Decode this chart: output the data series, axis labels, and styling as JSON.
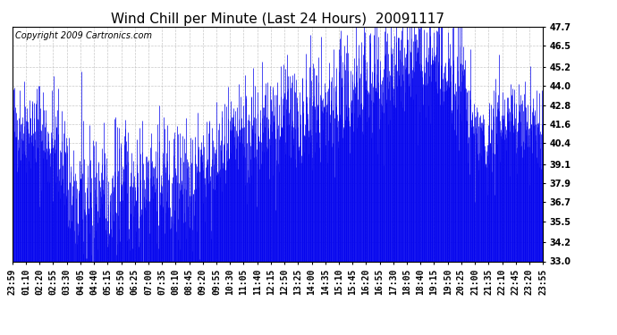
{
  "title": "Wind Chill per Minute (Last 24 Hours)  20091117",
  "copyright": "Copyright 2009 Cartronics.com",
  "line_color": "#0000ee",
  "fill_color": "#0000ee",
  "background_color": "#ffffff",
  "plot_bg_color": "#ffffff",
  "grid_color": "#bbbbbb",
  "ylim": [
    33.0,
    47.7
  ],
  "yticks": [
    33.0,
    34.2,
    35.5,
    36.7,
    37.9,
    39.1,
    40.4,
    41.6,
    42.8,
    44.0,
    45.2,
    46.5,
    47.7
  ],
  "xtick_labels": [
    "23:59",
    "01:10",
    "02:20",
    "02:55",
    "03:30",
    "04:05",
    "04:40",
    "05:15",
    "05:50",
    "06:25",
    "07:00",
    "07:35",
    "08:10",
    "08:45",
    "09:20",
    "09:55",
    "10:30",
    "11:05",
    "11:40",
    "12:15",
    "12:50",
    "13:25",
    "14:00",
    "14:35",
    "15:10",
    "15:45",
    "16:20",
    "16:55",
    "17:30",
    "18:05",
    "18:40",
    "19:15",
    "19:50",
    "20:25",
    "21:00",
    "21:35",
    "22:10",
    "22:45",
    "23:20",
    "23:55"
  ],
  "title_fontsize": 11,
  "copyright_fontsize": 7,
  "tick_fontsize": 7,
  "seed": 42
}
